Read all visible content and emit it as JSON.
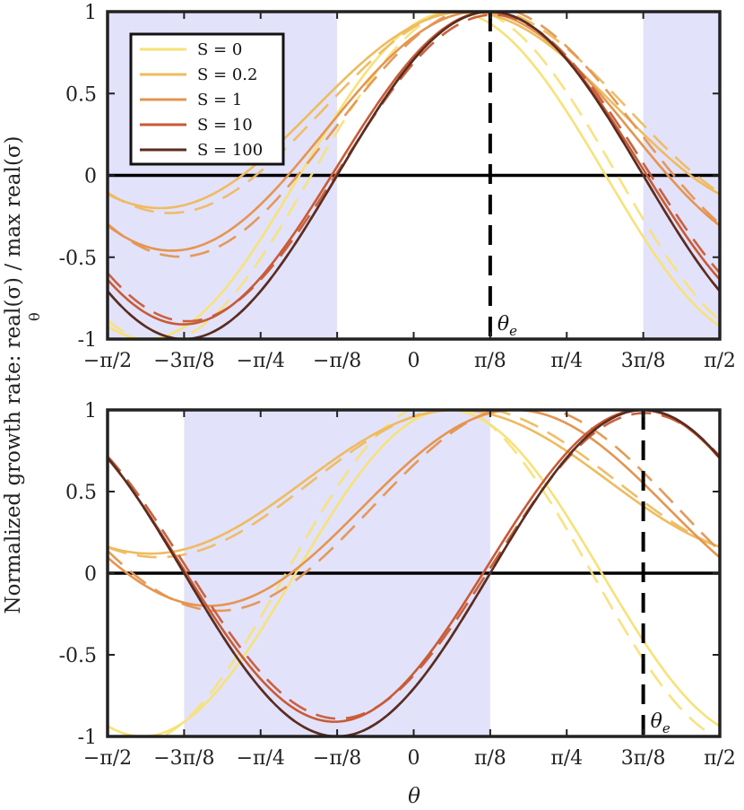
{
  "figure": {
    "ylabel": "Normalized growth rate:  real(σ) / max real(σ)",
    "ylabel_sub": "θ",
    "xlabel": "θ"
  },
  "legend": {
    "entries": [
      "S = 0",
      "S = 0.2",
      "S = 1",
      "S = 10",
      "S = 100"
    ]
  },
  "chart_data": [
    {
      "type": "line",
      "panel": "top",
      "xlabel": "",
      "ylabel": "Normalized growth rate: real(σ) / max_θ real(σ)",
      "xlim": [
        -1.5708,
        1.5708
      ],
      "ylim": [
        -1,
        1
      ],
      "x_tick_labels": [
        "−π/2",
        "−3π/8",
        "−π/4",
        "−π/8",
        "0",
        "π/8",
        "π/4",
        "3π/8",
        "π/2"
      ],
      "y_tick_labels": [
        "1",
        "0.5",
        "0",
        "-0.5",
        "-1"
      ],
      "y_ticks": [
        1,
        0.5,
        0,
        -0.5,
        -1
      ],
      "shaded_regions": [
        [
          -1.5708,
          -0.3927
        ],
        [
          1.1781,
          1.5708
        ]
      ],
      "vline": {
        "x": 0.3927,
        "label": "θe"
      },
      "hline_y": 0,
      "series": [
        {
          "name": "S = 0",
          "color": "#f7e27a",
          "model": "cos",
          "amp": 1,
          "phase": 0.2,
          "offset": 0.0,
          "peak": 1,
          "dash_shift": 0.06,
          "dash_amp": 1.02
        },
        {
          "name": "S = 0.2",
          "color": "#efbb5f",
          "model": "cos",
          "amp": 0.6,
          "phase": 0.27,
          "offset": 0.4,
          "peak": 1,
          "dash_shift": 0.05,
          "dash_amp": 1.05
        },
        {
          "name": "S = 1",
          "color": "#e59550",
          "model": "cos",
          "amp": 0.73,
          "phase": 0.33,
          "offset": 0.27,
          "peak": 1,
          "dash_shift": 0.04,
          "dash_amp": 1.05
        },
        {
          "name": "S = 10",
          "color": "#c85a35",
          "model": "cos",
          "amp": 0.955,
          "phase": 0.388,
          "offset": 0.045,
          "peak": 1,
          "dash_shift": 0.02,
          "dash_amp": 0.98
        },
        {
          "name": "S = 100",
          "color": "#5b2c20",
          "model": "cos",
          "amp": 1,
          "phase": 0.3927,
          "offset": 0.0,
          "peak": 1,
          "dash_shift": 0.0,
          "dash_amp": 1.0
        }
      ]
    },
    {
      "type": "line",
      "panel": "bottom",
      "xlabel": "θ",
      "ylabel": "",
      "xlim": [
        -1.5708,
        1.5708
      ],
      "ylim": [
        -1,
        1
      ],
      "x_tick_labels": [
        "−π/2",
        "−3π/8",
        "−π/4",
        "−π/8",
        "0",
        "π/8",
        "π/4",
        "3π/8",
        "π/2"
      ],
      "y_tick_labels": [
        "1",
        "0.5",
        "0",
        "-0.5",
        "-1"
      ],
      "y_ticks": [
        1,
        0.5,
        0,
        -0.5,
        -1
      ],
      "shaded_regions": [
        [
          -1.1781,
          0.3927
        ]
      ],
      "vline": {
        "x": 1.1781,
        "label": "θe"
      },
      "hline_y": 0,
      "series": [
        {
          "name": "S = 0",
          "color": "#f7e27a",
          "model": "cos",
          "amp": 1,
          "phase": 0.18,
          "offset": 0.0,
          "dash_shift": -0.05,
          "dash_amp": 1.05
        },
        {
          "name": "S = 0.2",
          "color": "#efbb5f",
          "model": "cos",
          "amp": 0.44,
          "phase": 0.22,
          "offset": 0.56,
          "dash_shift": 0.04,
          "dash_amp": 1.05
        },
        {
          "name": "S = 1",
          "color": "#e59550",
          "model": "cos",
          "amp": 0.6,
          "phase": 0.52,
          "offset": 0.4,
          "dash_shift": 0.05,
          "dash_amp": 1.05
        },
        {
          "name": "S = 10",
          "color": "#c85a35",
          "model": "cos",
          "amp": 0.955,
          "phase": 1.165,
          "offset": 0.045,
          "dash_shift": 0.02,
          "dash_amp": 0.98
        },
        {
          "name": "S = 100",
          "color": "#5b2c20",
          "model": "cos",
          "amp": 1,
          "phase": 1.1781,
          "offset": 0.0,
          "dash_shift": 0.0,
          "dash_amp": 1.0
        }
      ]
    }
  ]
}
